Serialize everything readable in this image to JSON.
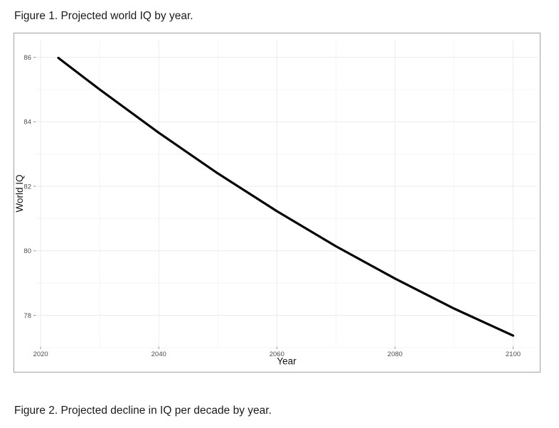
{
  "page": {
    "figure1_caption": "Figure 1. Projected world IQ by year.",
    "figure2_caption": "Figure 2. Projected decline in IQ per decade by year."
  },
  "chart_data": {
    "type": "line",
    "title": "",
    "xlabel": "Year",
    "ylabel": "World IQ",
    "x": [
      2023,
      2030,
      2040,
      2050,
      2060,
      2070,
      2080,
      2090,
      2100
    ],
    "values": [
      85.98,
      85.0,
      83.66,
      82.4,
      81.23,
      80.14,
      79.14,
      78.21,
      77.37
    ],
    "xticks": [
      2020,
      2040,
      2060,
      2080,
      2100
    ],
    "yticks": [
      78,
      80,
      82,
      84,
      86
    ],
    "x_minor": [
      2030,
      2050,
      2070,
      2090
    ],
    "y_minor": [
      77,
      79,
      81,
      83,
      85
    ],
    "xlim": [
      2019.2,
      2104.1
    ],
    "ylim": [
      77.03,
      86.53
    ],
    "grid": true,
    "legend": "none",
    "style": {
      "line_color": "#000000",
      "line_width": 3.2,
      "grid_major_color": "#ebebeb",
      "grid_minor_color": "#f4f4f4",
      "tick_mark_color": "#9a9a9a",
      "tick_label_color": "#4d4d4d",
      "axis_title_color": "#141414",
      "panel_background": "#ffffff",
      "figure_border_color": "#a3a3a3"
    }
  }
}
